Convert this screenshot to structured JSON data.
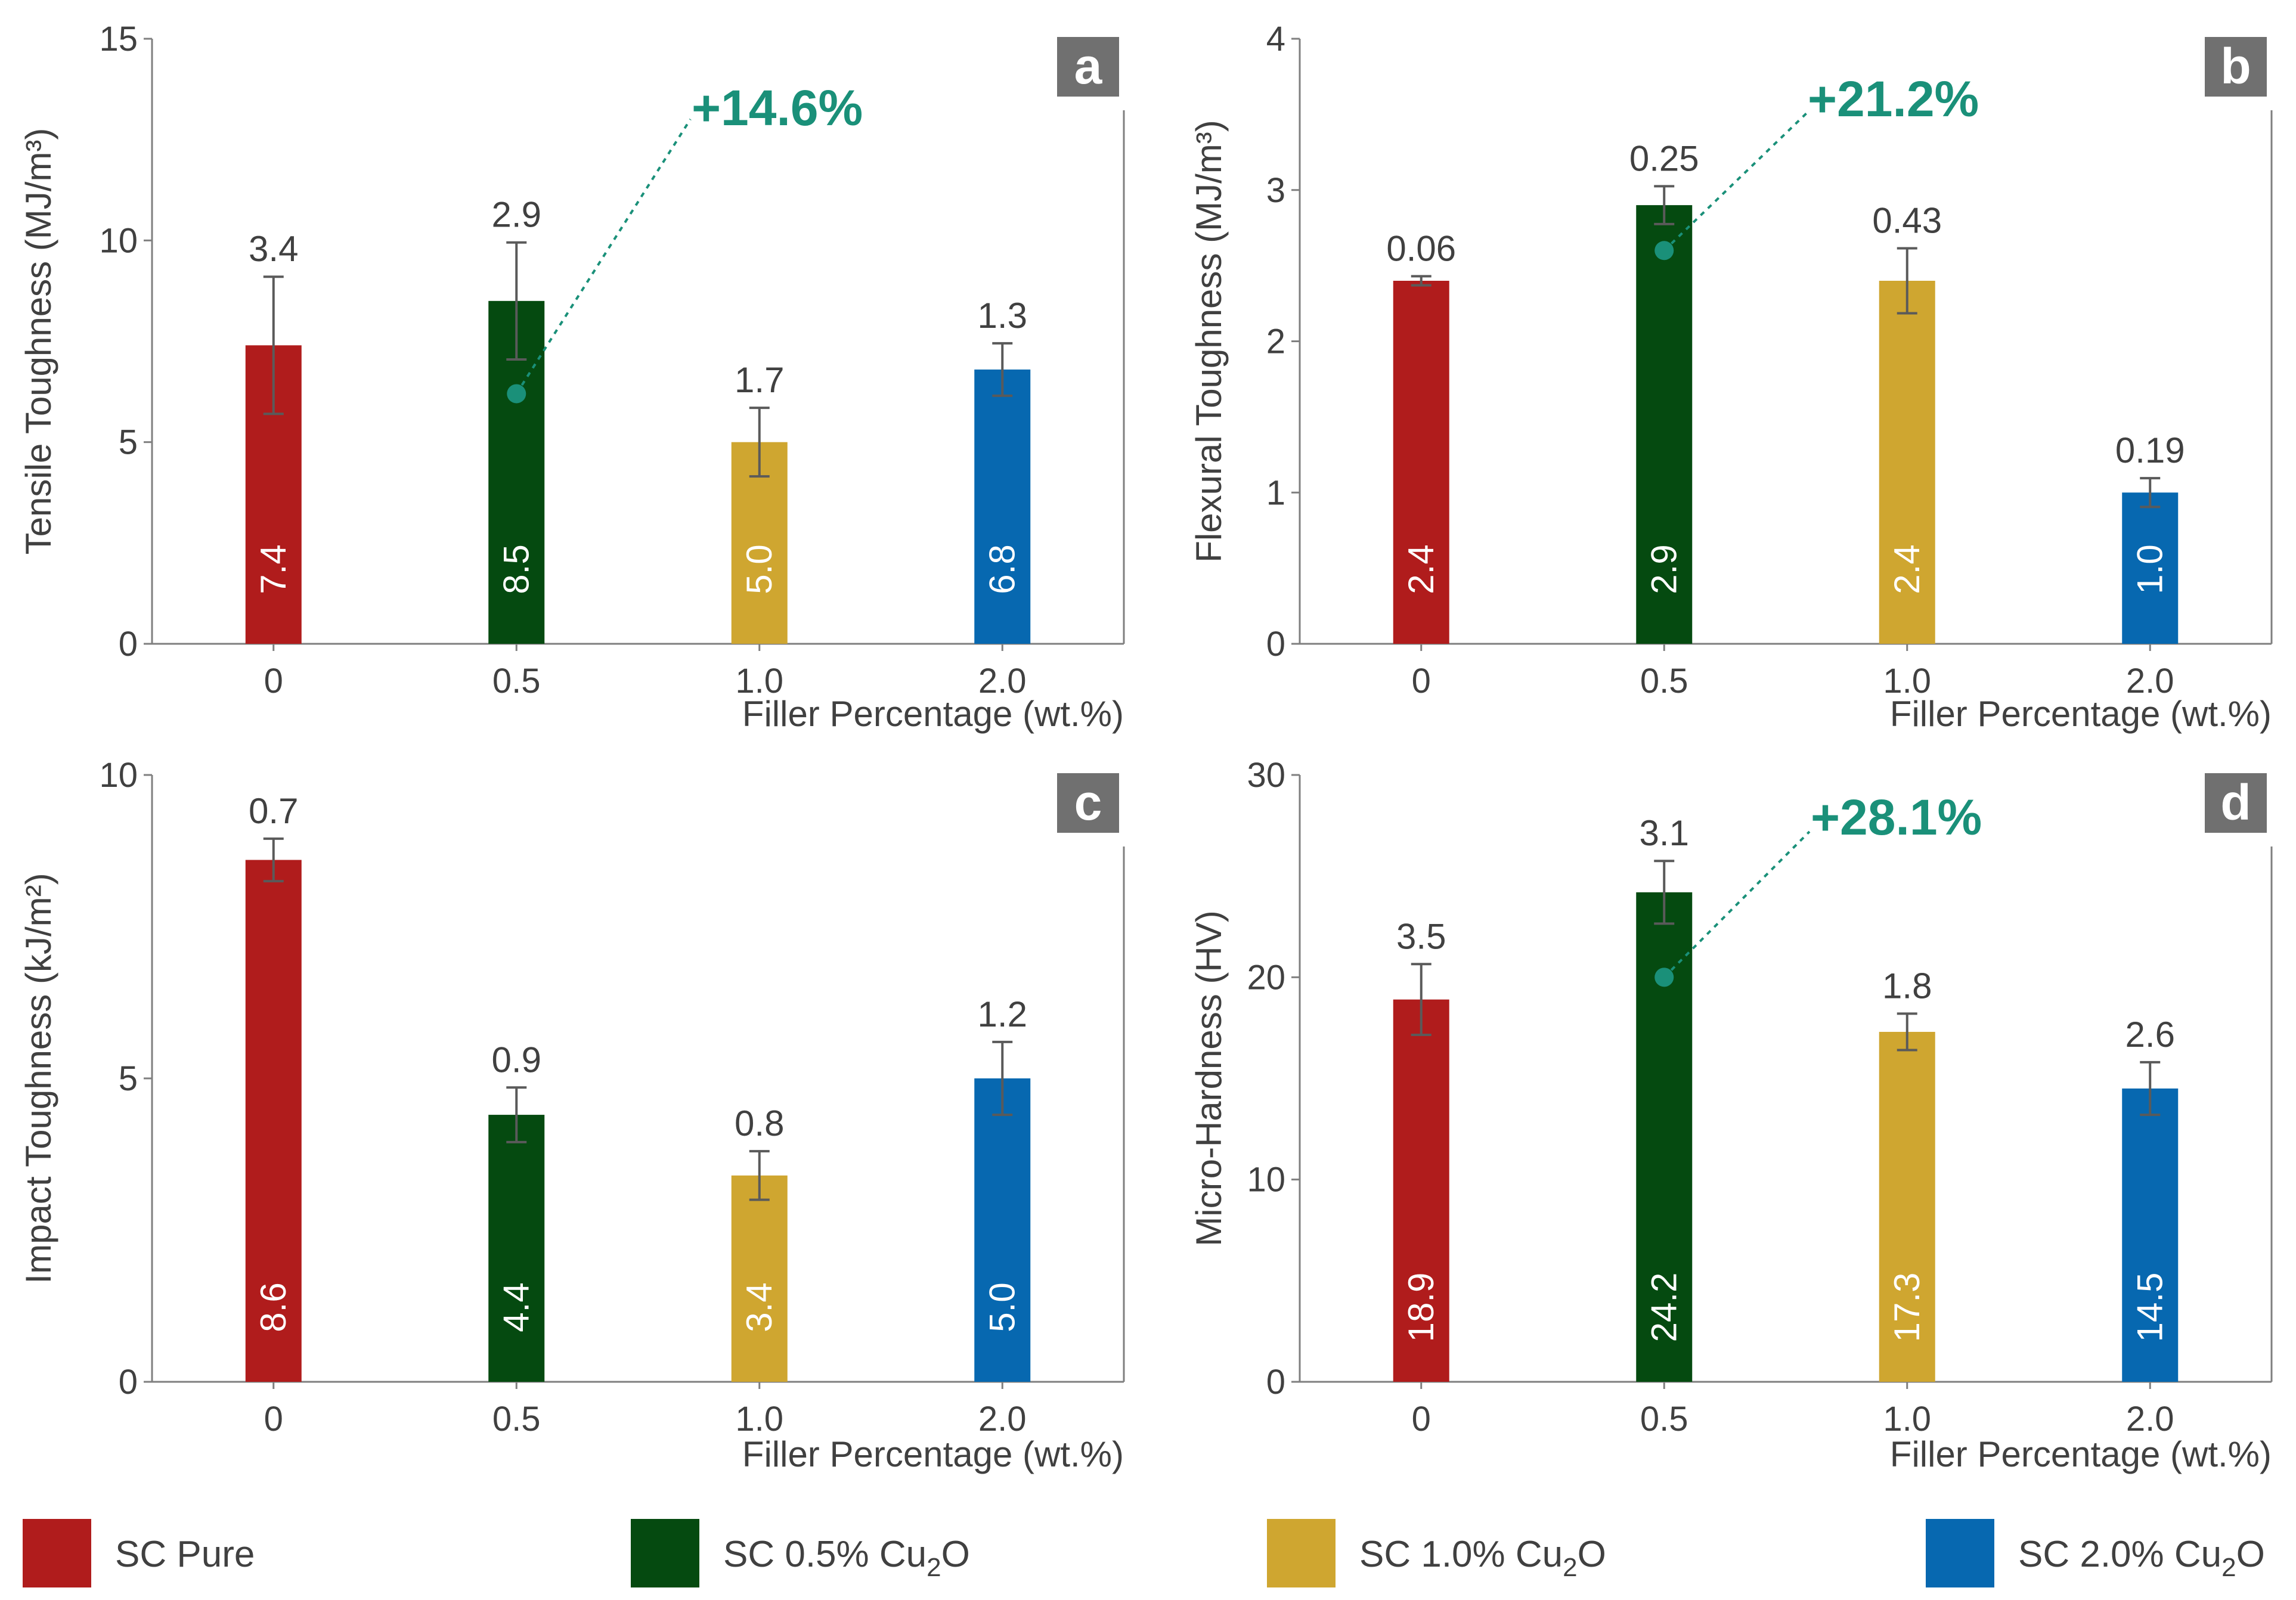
{
  "chart_data": [
    {
      "type": "bar",
      "panel": "a",
      "categories": [
        "0",
        "0.5",
        "1.0",
        "2.0"
      ],
      "values": [
        7.4,
        8.5,
        5.0,
        6.8
      ],
      "errors": [
        3.4,
        2.9,
        1.7,
        1.3
      ],
      "error_labels": [
        "3.4",
        "2.9",
        "1.7",
        "1.3"
      ],
      "value_labels": [
        "7.4",
        "8.5",
        "5.0",
        "6.8"
      ],
      "xlabel": "Filler Percentage (wt.%)",
      "ylabel": "Tensile Toughness (MJ/m³)",
      "ylim": [
        0,
        15
      ],
      "yticks": [
        0,
        5,
        10,
        15
      ],
      "ytick_labels": [
        "0",
        "5",
        "10",
        "15"
      ],
      "annotation": {
        "text": "+14.6%",
        "category_index": 1,
        "marker_value": 6.2
      }
    },
    {
      "type": "bar",
      "panel": "b",
      "categories": [
        "0",
        "0.5",
        "1.0",
        "2.0"
      ],
      "values": [
        2.4,
        2.9,
        2.4,
        1.0
      ],
      "errors": [
        0.06,
        0.25,
        0.43,
        0.19
      ],
      "error_labels": [
        "0.06",
        "0.25",
        "0.43",
        "0.19"
      ],
      "value_labels": [
        "2.4",
        "2.9",
        "2.4",
        "1.0"
      ],
      "xlabel": "Filler Percentage (wt.%)",
      "ylabel": "Flexural Toughness (MJ/m³)",
      "ylim": [
        0,
        4
      ],
      "yticks": [
        0,
        1,
        2,
        3,
        4
      ],
      "ytick_labels": [
        "0",
        "1",
        "2",
        "3",
        "4"
      ],
      "annotation": {
        "text": "+21.2%",
        "category_index": 1,
        "marker_value": 2.6
      }
    },
    {
      "type": "bar",
      "panel": "c",
      "categories": [
        "0",
        "0.5",
        "1.0",
        "2.0"
      ],
      "values": [
        8.6,
        4.4,
        3.4,
        5.0
      ],
      "errors": [
        0.7,
        0.9,
        0.8,
        1.2
      ],
      "error_labels": [
        "0.7",
        "0.9",
        "0.8",
        "1.2"
      ],
      "value_labels": [
        "8.6",
        "4.4",
        "3.4",
        "5.0"
      ],
      "xlabel": "Filler Percentage (wt.%)",
      "ylabel": "Impact Toughness (kJ/m²)",
      "ylim": [
        0,
        10
      ],
      "yticks": [
        0,
        5,
        10
      ],
      "ytick_labels": [
        "0",
        "5",
        "10"
      ],
      "annotation": null
    },
    {
      "type": "bar",
      "panel": "d",
      "categories": [
        "0",
        "0.5",
        "1.0",
        "2.0"
      ],
      "values": [
        18.9,
        24.2,
        17.3,
        14.5
      ],
      "errors": [
        3.5,
        3.1,
        1.8,
        2.6
      ],
      "error_labels": [
        "3.5",
        "3.1",
        "1.8",
        "2.6"
      ],
      "value_labels": [
        "18.9",
        "24.2",
        "17.3",
        "14.5"
      ],
      "xlabel": "Filler Percentage (wt.%)",
      "ylabel": "Micro-Hardness (HV)",
      "ylim": [
        0,
        30
      ],
      "yticks": [
        0,
        10,
        20,
        30
      ],
      "ytick_labels": [
        "0",
        "10",
        "20",
        "30"
      ],
      "annotation": {
        "text": "+28.1%",
        "category_index": 1,
        "marker_value": 20
      }
    }
  ],
  "legend": [
    {
      "label": "SC Pure",
      "sub": "",
      "tail": ""
    },
    {
      "label": "SC 0.5% Cu",
      "sub": "2",
      "tail": "O"
    },
    {
      "label": "SC 1.0% Cu",
      "sub": "2",
      "tail": "O"
    },
    {
      "label": "SC 2.0% Cu",
      "sub": "2",
      "tail": "O"
    }
  ],
  "colors": {
    "series": [
      "#b01c1c",
      "#054a10",
      "#cfa630",
      "#0768b0"
    ],
    "annotation": "#1a9079",
    "axis": "#7f7f7f",
    "text": "#404040",
    "error_bar": "#5a5a5a",
    "letter_box": "#707070"
  }
}
